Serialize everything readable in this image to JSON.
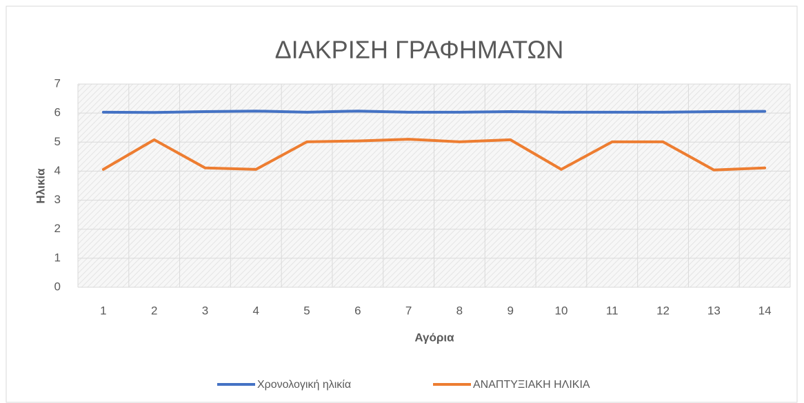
{
  "chart_data": {
    "type": "line",
    "title": "ΔΙΑΚΡΙΣΗ ΓΡΑΦΗΜΑΤΩΝ",
    "x_label": "Αγόρια",
    "y_label": "Ηλικία",
    "categories": [
      "1",
      "2",
      "3",
      "4",
      "5",
      "6",
      "7",
      "8",
      "9",
      "10",
      "11",
      "12",
      "13",
      "14"
    ],
    "series": [
      {
        "name": "Χρονολογική ηλικία",
        "color": "#4472c4",
        "values": [
          6.03,
          6.02,
          6.05,
          6.07,
          6.03,
          6.07,
          6.03,
          6.03,
          6.05,
          6.03,
          6.03,
          6.03,
          6.05,
          6.06
        ]
      },
      {
        "name": "ΑΝΑΠΤΥΞΙΑΚΗ ΗΛΙΚΙΑ",
        "color": "#ed7d31",
        "values": [
          4.06,
          5.08,
          4.11,
          4.06,
          5.01,
          5.04,
          5.1,
          5.01,
          5.08,
          4.06,
          5.01,
          5.01,
          4.04,
          4.11
        ]
      }
    ],
    "ylim": [
      0,
      7
    ],
    "yticks": [
      0,
      1,
      2,
      3,
      4,
      5,
      6,
      7
    ],
    "grid": true,
    "legend": "bottom"
  }
}
